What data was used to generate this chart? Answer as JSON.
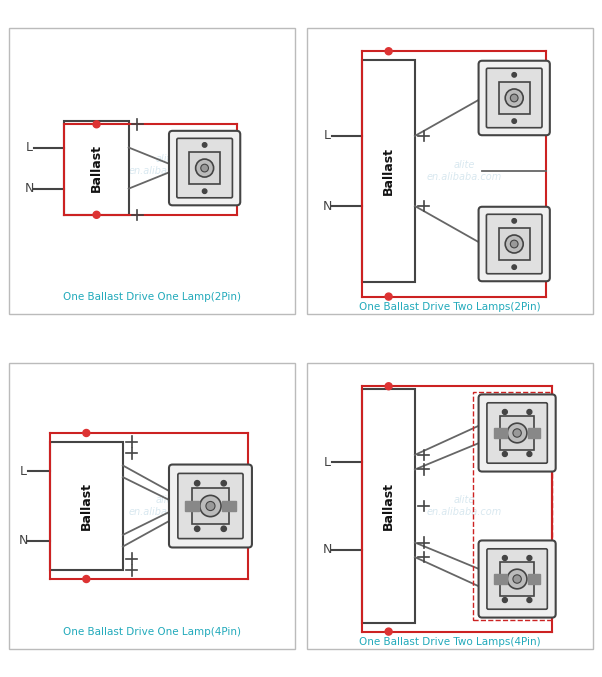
{
  "bg_color": "#ffffff",
  "wire_red": "#cc2222",
  "wire_dark": "#444444",
  "wire_mid": "#666666",
  "label_color": "#22aabb",
  "dot_color": "#dd3333",
  "panels": [
    {
      "title": "One Ballast Drive One Lamp(2Pin)",
      "pins": 2,
      "lamps": 1
    },
    {
      "title": "One Ballast Drive Two Lamps(2Pin)",
      "pins": 2,
      "lamps": 2
    },
    {
      "title": "One Ballast Drive One Lamp(4Pin)",
      "pins": 4,
      "lamps": 1
    },
    {
      "title": "One Ballast Drive Two Lamps(4Pin)",
      "pins": 4,
      "lamps": 2
    }
  ],
  "watermark": "alite\nen.alibaba.com"
}
